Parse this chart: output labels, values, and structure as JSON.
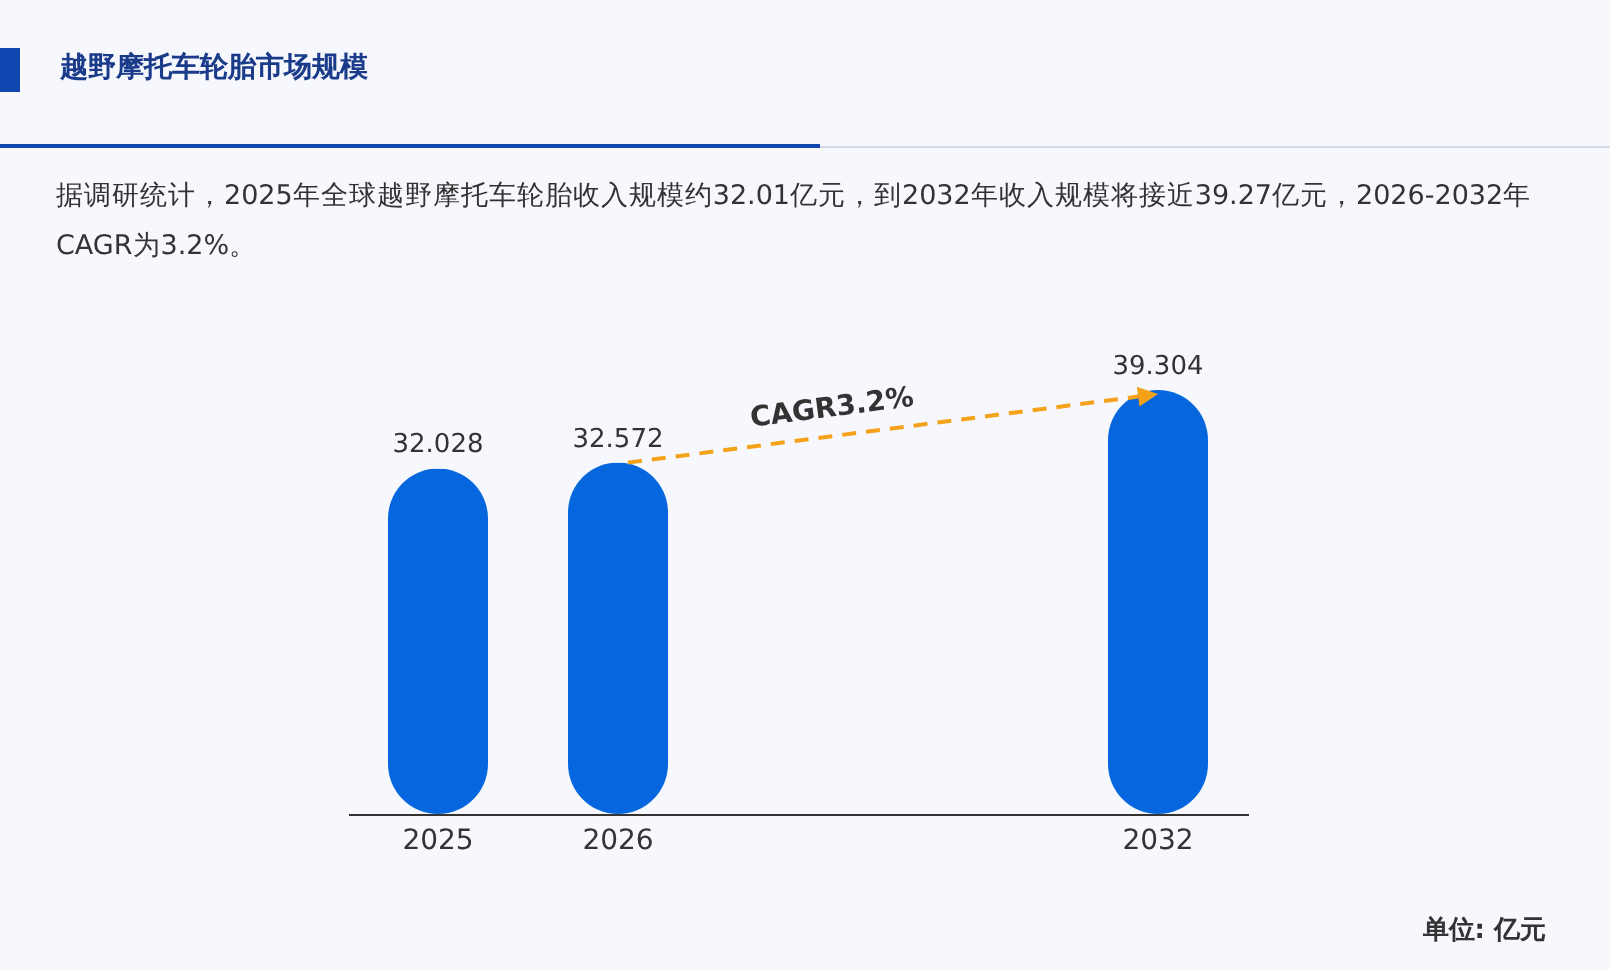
{
  "chart_data": {
    "type": "bar",
    "title": "越野摩托车轮胎市场规模",
    "subtitle": "据调研统计，2025年全球越野摩托车轮胎收入规模约32.01亿元，到2032年收入规模将接近39.27亿元，2026-2032年CAGR为3.2%。",
    "categories": [
      "2025",
      "2026",
      null,
      null,
      "2032"
    ],
    "values": [
      32.028,
      32.572,
      null,
      null,
      39.304
    ],
    "color": "#0566dd",
    "data_labels": true,
    "annotations": [
      "CAGR3.2%",
      "单位: 亿元"
    ]
  }
}
